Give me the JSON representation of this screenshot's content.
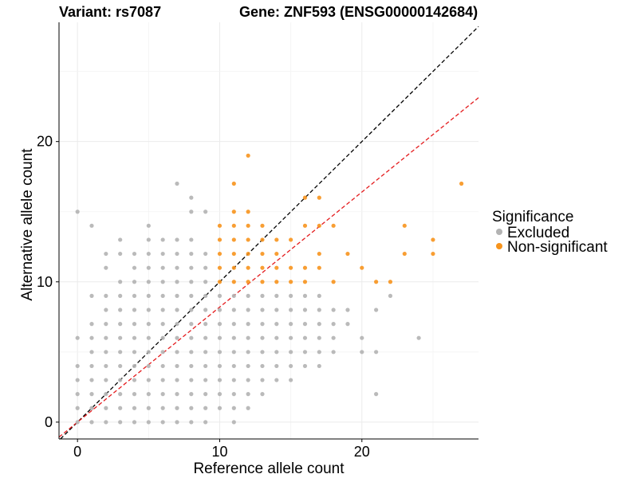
{
  "header": {
    "variant_title": "Variant: rs7087",
    "gene_title": "Gene: ZNF593 (ENSG00000142684)"
  },
  "chart_data": {
    "type": "scatter",
    "xlabel": "Reference allele count",
    "ylabel": "Alternative allele count",
    "xlim": [
      -1.3,
      28.2
    ],
    "ylim": [
      -1.2,
      28.5
    ],
    "x_ticks": [
      0,
      10,
      20
    ],
    "y_ticks": [
      0,
      10,
      20
    ],
    "grid": true,
    "legend": {
      "title": "Significance",
      "placement": "right",
      "entries": [
        {
          "label": "Excluded",
          "color": "#b3b3b3"
        },
        {
          "label": "Non-significant",
          "color": "#f7941d"
        }
      ]
    },
    "reference_lines": [
      {
        "slope": 1,
        "intercept": 0,
        "color": "#000000",
        "style": "dashed"
      },
      {
        "slope": 0.82,
        "intercept": 0,
        "color": "#e41a1c",
        "style": "dashed"
      }
    ],
    "series": [
      {
        "name": "Excluded",
        "color": "#b3b3b3",
        "points": [
          [
            0,
            0
          ],
          [
            0,
            1
          ],
          [
            0,
            2
          ],
          [
            0,
            3
          ],
          [
            0,
            4
          ],
          [
            0,
            6
          ],
          [
            0,
            15
          ],
          [
            1,
            0
          ],
          [
            1,
            1
          ],
          [
            1,
            2
          ],
          [
            1,
            3
          ],
          [
            1,
            4
          ],
          [
            1,
            5
          ],
          [
            1,
            6
          ],
          [
            1,
            7
          ],
          [
            1,
            9
          ],
          [
            1,
            14
          ],
          [
            2,
            0
          ],
          [
            2,
            1
          ],
          [
            2,
            2
          ],
          [
            2,
            3
          ],
          [
            2,
            4
          ],
          [
            2,
            5
          ],
          [
            2,
            6
          ],
          [
            2,
            7
          ],
          [
            2,
            8
          ],
          [
            2,
            9
          ],
          [
            2,
            11
          ],
          [
            2,
            12
          ],
          [
            3,
            0
          ],
          [
            3,
            1
          ],
          [
            3,
            2
          ],
          [
            3,
            3
          ],
          [
            3,
            4
          ],
          [
            3,
            5
          ],
          [
            3,
            6
          ],
          [
            3,
            7
          ],
          [
            3,
            8
          ],
          [
            3,
            9
          ],
          [
            3,
            10
          ],
          [
            3,
            12
          ],
          [
            3,
            13
          ],
          [
            4,
            0
          ],
          [
            4,
            1
          ],
          [
            4,
            2
          ],
          [
            4,
            3
          ],
          [
            4,
            4
          ],
          [
            4,
            5
          ],
          [
            4,
            6
          ],
          [
            4,
            7
          ],
          [
            4,
            8
          ],
          [
            4,
            9
          ],
          [
            4,
            10
          ],
          [
            4,
            11
          ],
          [
            4,
            12
          ],
          [
            5,
            0
          ],
          [
            5,
            1
          ],
          [
            5,
            2
          ],
          [
            5,
            3
          ],
          [
            5,
            4
          ],
          [
            5,
            5
          ],
          [
            5,
            6
          ],
          [
            5,
            7
          ],
          [
            5,
            8
          ],
          [
            5,
            9
          ],
          [
            5,
            10
          ],
          [
            5,
            11
          ],
          [
            5,
            12
          ],
          [
            5,
            13
          ],
          [
            5,
            14
          ],
          [
            6,
            0
          ],
          [
            6,
            1
          ],
          [
            6,
            2
          ],
          [
            6,
            3
          ],
          [
            6,
            4
          ],
          [
            6,
            5
          ],
          [
            6,
            6
          ],
          [
            6,
            7
          ],
          [
            6,
            8
          ],
          [
            6,
            9
          ],
          [
            6,
            10
          ],
          [
            6,
            11
          ],
          [
            6,
            12
          ],
          [
            6,
            13
          ],
          [
            7,
            0
          ],
          [
            7,
            1
          ],
          [
            7,
            2
          ],
          [
            7,
            3
          ],
          [
            7,
            4
          ],
          [
            7,
            5
          ],
          [
            7,
            6
          ],
          [
            7,
            7
          ],
          [
            7,
            8
          ],
          [
            7,
            9
          ],
          [
            7,
            10
          ],
          [
            7,
            11
          ],
          [
            7,
            12
          ],
          [
            7,
            13
          ],
          [
            7,
            17
          ],
          [
            8,
            0
          ],
          [
            8,
            1
          ],
          [
            8,
            2
          ],
          [
            8,
            3
          ],
          [
            8,
            4
          ],
          [
            8,
            5
          ],
          [
            8,
            6
          ],
          [
            8,
            7
          ],
          [
            8,
            8
          ],
          [
            8,
            9
          ],
          [
            8,
            10
          ],
          [
            8,
            11
          ],
          [
            8,
            12
          ],
          [
            8,
            13
          ],
          [
            8,
            15
          ],
          [
            8,
            16
          ],
          [
            9,
            0
          ],
          [
            9,
            1
          ],
          [
            9,
            2
          ],
          [
            9,
            3
          ],
          [
            9,
            4
          ],
          [
            9,
            5
          ],
          [
            9,
            6
          ],
          [
            9,
            7
          ],
          [
            9,
            8
          ],
          [
            9,
            9
          ],
          [
            9,
            10
          ],
          [
            9,
            11
          ],
          [
            9,
            12
          ],
          [
            9,
            15
          ],
          [
            10,
            1
          ],
          [
            10,
            2
          ],
          [
            10,
            3
          ],
          [
            10,
            4
          ],
          [
            10,
            5
          ],
          [
            10,
            6
          ],
          [
            10,
            7
          ],
          [
            10,
            8
          ],
          [
            10,
            9
          ],
          [
            11,
            0
          ],
          [
            11,
            1
          ],
          [
            11,
            2
          ],
          [
            11,
            3
          ],
          [
            11,
            4
          ],
          [
            11,
            5
          ],
          [
            11,
            6
          ],
          [
            11,
            7
          ],
          [
            11,
            8
          ],
          [
            11,
            9
          ],
          [
            12,
            1
          ],
          [
            12,
            2
          ],
          [
            12,
            3
          ],
          [
            12,
            4
          ],
          [
            12,
            5
          ],
          [
            12,
            6
          ],
          [
            12,
            7
          ],
          [
            12,
            8
          ],
          [
            12,
            9
          ],
          [
            13,
            2
          ],
          [
            13,
            3
          ],
          [
            13,
            4
          ],
          [
            13,
            5
          ],
          [
            13,
            6
          ],
          [
            13,
            7
          ],
          [
            13,
            8
          ],
          [
            13,
            9
          ],
          [
            14,
            3
          ],
          [
            14,
            4
          ],
          [
            14,
            5
          ],
          [
            14,
            6
          ],
          [
            14,
            7
          ],
          [
            14,
            8
          ],
          [
            14,
            9
          ],
          [
            15,
            3
          ],
          [
            15,
            4
          ],
          [
            15,
            5
          ],
          [
            15,
            6
          ],
          [
            15,
            7
          ],
          [
            15,
            8
          ],
          [
            15,
            9
          ],
          [
            16,
            4
          ],
          [
            16,
            5
          ],
          [
            16,
            6
          ],
          [
            16,
            7
          ],
          [
            16,
            8
          ],
          [
            16,
            9
          ],
          [
            17,
            4
          ],
          [
            17,
            5
          ],
          [
            17,
            6
          ],
          [
            17,
            7
          ],
          [
            17,
            8
          ],
          [
            17,
            9
          ],
          [
            18,
            5
          ],
          [
            18,
            6
          ],
          [
            18,
            7
          ],
          [
            18,
            8
          ],
          [
            19,
            7
          ],
          [
            19,
            8
          ],
          [
            20,
            5
          ],
          [
            20,
            6
          ],
          [
            21,
            2
          ],
          [
            21,
            5
          ],
          [
            21,
            8
          ],
          [
            22,
            9
          ],
          [
            24,
            6
          ]
        ]
      },
      {
        "name": "Non-significant",
        "color": "#f7941d",
        "points": [
          [
            10,
            10
          ],
          [
            10,
            11
          ],
          [
            10,
            12
          ],
          [
            10,
            13
          ],
          [
            10,
            14
          ],
          [
            11,
            10
          ],
          [
            11,
            11
          ],
          [
            11,
            12
          ],
          [
            11,
            13
          ],
          [
            11,
            14
          ],
          [
            11,
            15
          ],
          [
            11,
            17
          ],
          [
            12,
            10
          ],
          [
            12,
            11
          ],
          [
            12,
            12
          ],
          [
            12,
            13
          ],
          [
            12,
            14
          ],
          [
            12,
            15
          ],
          [
            12,
            19
          ],
          [
            13,
            10
          ],
          [
            13,
            11
          ],
          [
            13,
            12
          ],
          [
            13,
            13
          ],
          [
            13,
            14
          ],
          [
            14,
            10
          ],
          [
            14,
            11
          ],
          [
            14,
            12
          ],
          [
            14,
            13
          ],
          [
            15,
            10
          ],
          [
            15,
            11
          ],
          [
            15,
            13
          ],
          [
            16,
            10
          ],
          [
            16,
            11
          ],
          [
            16,
            14
          ],
          [
            16,
            16
          ],
          [
            17,
            11
          ],
          [
            17,
            12
          ],
          [
            17,
            14
          ],
          [
            17,
            16
          ],
          [
            18,
            10
          ],
          [
            18,
            14
          ],
          [
            19,
            12
          ],
          [
            20,
            11
          ],
          [
            21,
            10
          ],
          [
            22,
            10
          ],
          [
            23,
            12
          ],
          [
            23,
            14
          ],
          [
            25,
            12
          ],
          [
            25,
            13
          ],
          [
            27,
            17
          ]
        ]
      }
    ]
  }
}
